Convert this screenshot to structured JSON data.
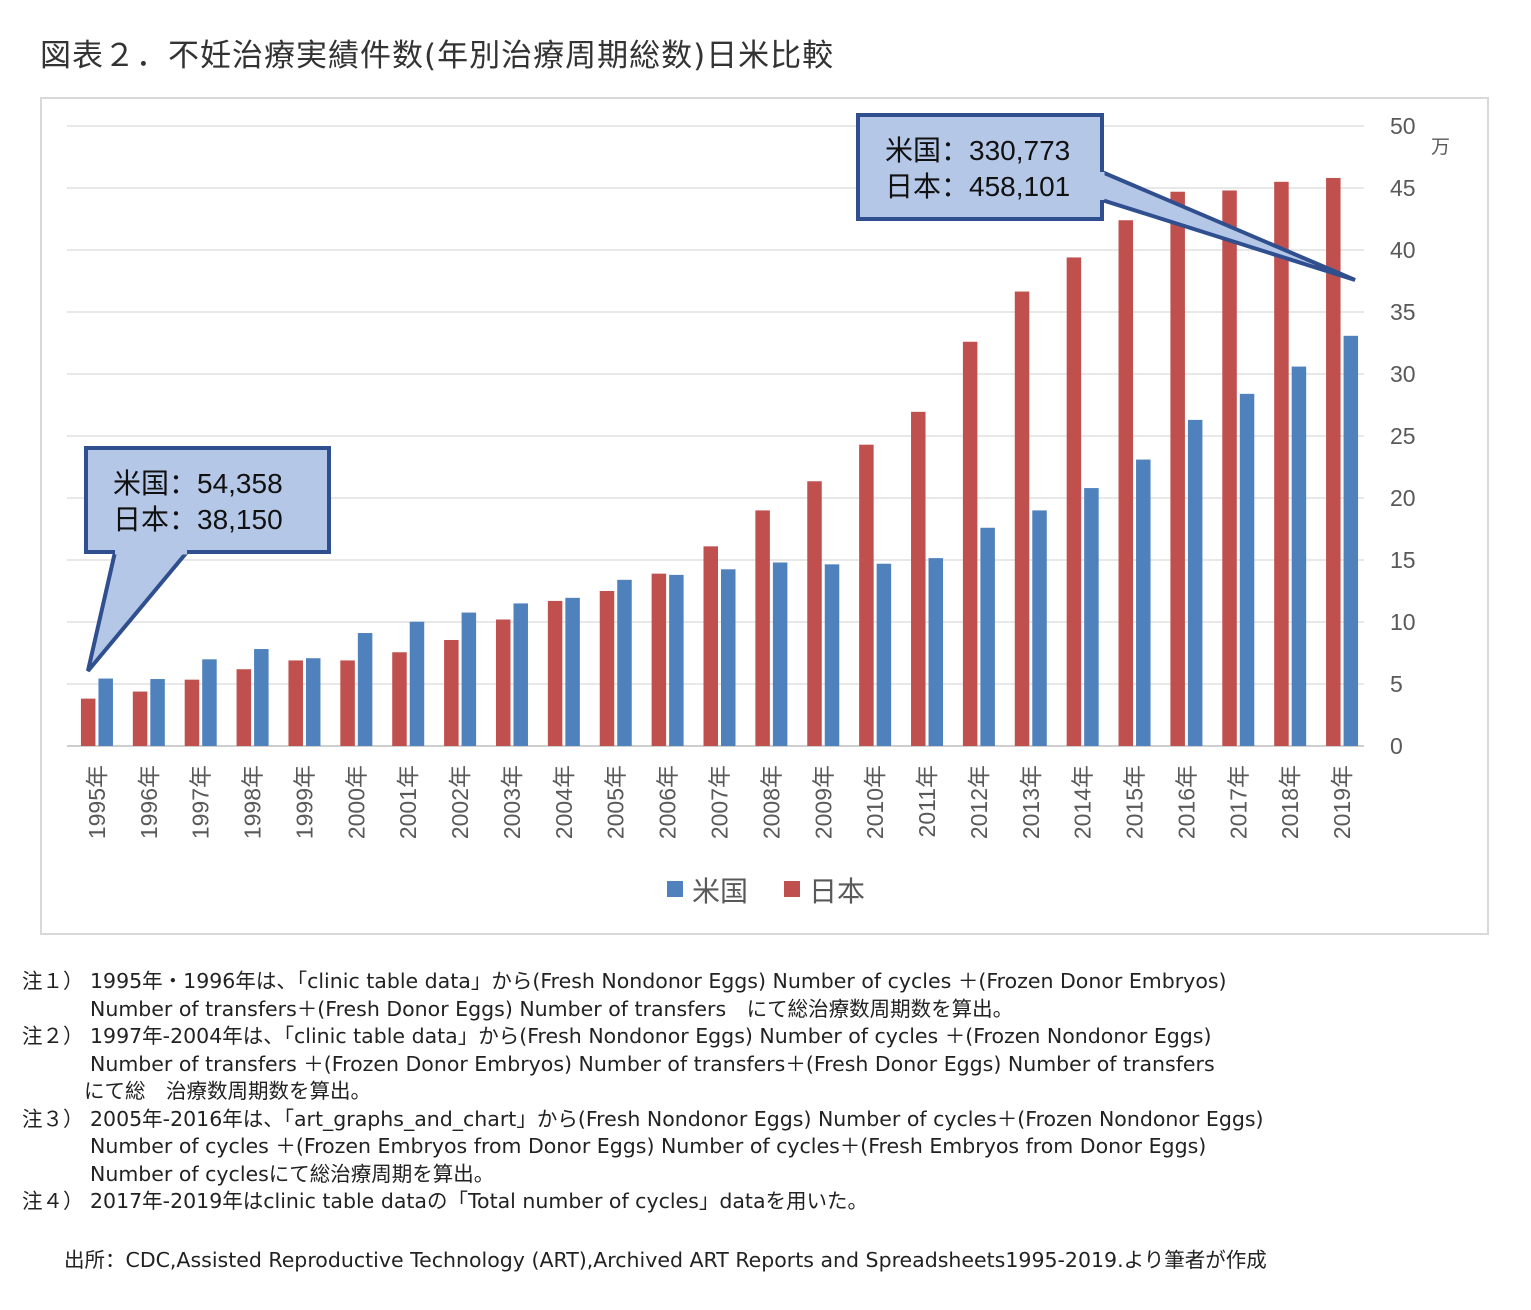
{
  "title": "図表２．不妊治療実績件数(年別治療周期総数)日米比較",
  "chart_data": {
    "type": "bar",
    "unit": "万",
    "ylim": [
      0,
      50
    ],
    "yticks": [
      "0",
      "5",
      "10",
      "15",
      "20",
      "25",
      "30",
      "35",
      "40",
      "45",
      "50"
    ],
    "categories": [
      "1995年",
      "1996年",
      "1997年",
      "1998年",
      "1999年",
      "2000年",
      "2001年",
      "2002年",
      "2003年",
      "2004年",
      "2005年",
      "2006年",
      "2007年",
      "2008年",
      "2009年",
      "2010年",
      "2011年",
      "2012年",
      "2013年",
      "2014年",
      "2015年",
      "2016年",
      "2017年",
      "2018年",
      "2019年"
    ],
    "series": [
      {
        "name": "米国",
        "color": "#4f81bd",
        "values": [
          5.44,
          5.4,
          6.99,
          7.82,
          7.08,
          9.11,
          10.02,
          10.76,
          11.5,
          11.95,
          13.4,
          13.8,
          14.25,
          14.8,
          14.65,
          14.7,
          15.15,
          17.6,
          19.0,
          20.8,
          23.1,
          26.3,
          28.4,
          30.6,
          33.08
        ]
      },
      {
        "name": "日本",
        "color": "#c0504d",
        "values": [
          3.82,
          4.39,
          5.35,
          6.19,
          6.9,
          6.9,
          7.56,
          8.55,
          10.2,
          11.7,
          12.5,
          13.9,
          16.1,
          19.0,
          21.35,
          24.3,
          26.95,
          32.6,
          36.65,
          39.4,
          42.4,
          44.7,
          44.8,
          45.5,
          45.81
        ]
      }
    ],
    "legend_position": "bottom",
    "callouts": [
      {
        "lines": [
          "米国：54,358",
          "日本：38,150"
        ],
        "category_index": 0
      },
      {
        "lines": [
          "米国：330,773",
          "日本：458,101"
        ],
        "category_index": 24
      }
    ]
  },
  "notes": [
    {
      "label": "注１）",
      "lines": [
        "1995年・1996年は、「clinic table data」から(Fresh Nondonor Eggs) Number of cycles ＋(Frozen Donor Embryos)",
        "Number of transfers＋(Fresh Donor Eggs) Number of transfers　にて総治療数周期数を算出。"
      ]
    },
    {
      "label": "注２）",
      "lines": [
        "1997年-2004年は、「clinic table data」から(Fresh Nondonor Eggs) Number of cycles ＋(Frozen Nondonor Eggs)",
        "Number of transfers ＋(Frozen Donor Embryos) Number of transfers＋(Fresh Donor Eggs) Number of transfers",
        "にて総　治療数周期数を算出。"
      ]
    },
    {
      "label": "注３）",
      "lines": [
        "2005年-2016年は、「art_graphs_and_chart」から(Fresh Nondonor Eggs) Number of cycles＋(Frozen Nondonor Eggs)",
        "Number of cycles ＋(Frozen Embryos from Donor Eggs) Number of cycles＋(Fresh Embryos from Donor Eggs)",
        "Number of cyclesにて総治療周期を算出。"
      ]
    },
    {
      "label": "注４）",
      "lines": [
        "2017年-2019年はclinic table dataの「Total number of cycles」dataを用いた。"
      ]
    }
  ],
  "source": "出所：CDC,Assisted Reproductive Technology (ART),Archived ART Reports and Spreadsheets1995-2019.より筆者が作成"
}
